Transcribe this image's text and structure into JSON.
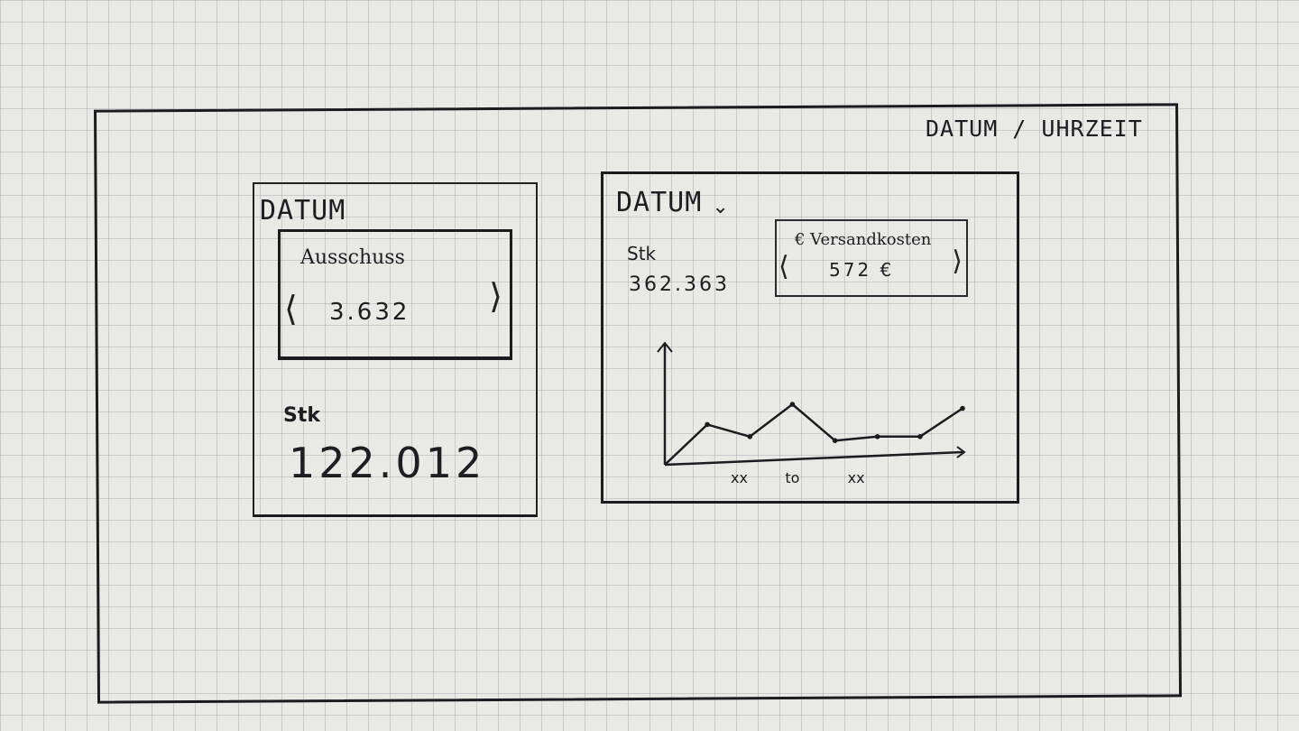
{
  "header": {
    "datetime_label": "DATUM / UHRZEIT"
  },
  "left_card": {
    "title": "DATUM",
    "reject": {
      "label": "Ausschuss",
      "value": "3.632",
      "prev_icon": "chevron-left-icon",
      "next_icon": "chevron-right-icon"
    },
    "stk_label": "Stk",
    "stk_value": "122.012"
  },
  "right_card": {
    "title": "DATUM",
    "dropdown_icon": "chevron-down-icon",
    "stk_label": "Stk",
    "stk_value": "362.363",
    "shipping": {
      "label": "€ Versandkosten",
      "value": "572 €",
      "prev_icon": "chevron-left-icon",
      "next_icon": "chevron-right-icon"
    }
  },
  "chart_data": {
    "type": "line",
    "x": [
      0,
      1,
      2,
      3,
      4,
      5,
      6,
      7
    ],
    "tick_labels": [
      "xx",
      "to",
      "xx"
    ],
    "series": [
      {
        "values": [
          0,
          5,
          3.5,
          7.5,
          3,
          3.5,
          3.5,
          7
        ]
      }
    ],
    "ylim": [
      0,
      14
    ],
    "grid": false
  }
}
